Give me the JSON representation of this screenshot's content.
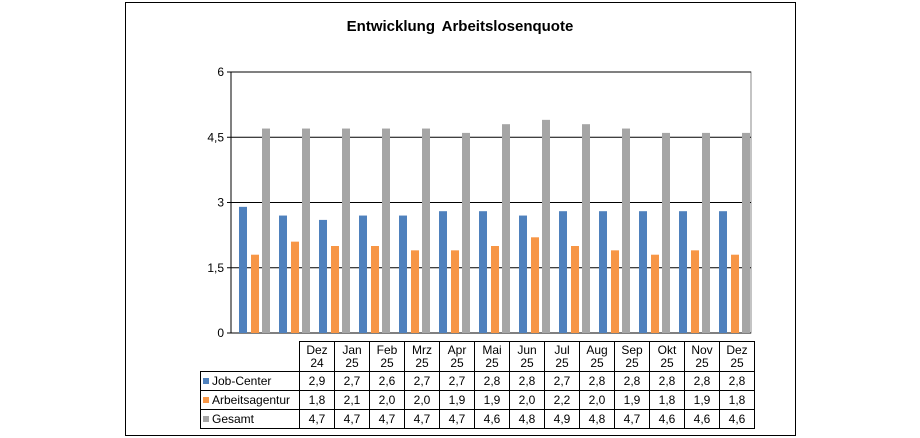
{
  "chart_data": {
    "type": "bar",
    "title": "Entwicklung  Arbeitslosenquote",
    "categories": [
      [
        "Dez",
        "24"
      ],
      [
        "Jan",
        "25"
      ],
      [
        "Feb",
        "25"
      ],
      [
        "Mrz",
        "25"
      ],
      [
        "Apr",
        "25"
      ],
      [
        "Mai",
        "25"
      ],
      [
        "Jun",
        "25"
      ],
      [
        "Jul",
        "25"
      ],
      [
        "Aug",
        "25"
      ],
      [
        "Sep",
        "25"
      ],
      [
        "Okt",
        "25"
      ],
      [
        "Nov",
        "25"
      ],
      [
        "Dez",
        "25"
      ]
    ],
    "ylim": [
      0,
      6
    ],
    "yticks": [
      "0",
      "1,5",
      "3",
      "4,5",
      "6"
    ],
    "grid": true,
    "legend": "data-table",
    "series": [
      {
        "name": "Job-Center",
        "color": "#4f81bd",
        "values": [
          2.9,
          2.7,
          2.6,
          2.7,
          2.7,
          2.8,
          2.8,
          2.7,
          2.8,
          2.8,
          2.8,
          2.8,
          2.8
        ],
        "labels": [
          "2,9",
          "2,7",
          "2,6",
          "2,7",
          "2,7",
          "2,8",
          "2,8",
          "2,7",
          "2,8",
          "2,8",
          "2,8",
          "2,8",
          "2,8"
        ]
      },
      {
        "name": "Arbeitsagentur",
        "color": "#f79646",
        "values": [
          1.8,
          2.1,
          2.0,
          2.0,
          1.9,
          1.9,
          2.0,
          2.2,
          2.0,
          1.9,
          1.8,
          1.9,
          1.8
        ],
        "labels": [
          "1,8",
          "2,1",
          "2,0",
          "2,0",
          "1,9",
          "1,9",
          "2,0",
          "2,2",
          "2,0",
          "1,9",
          "1,8",
          "1,9",
          "1,8"
        ]
      },
      {
        "name": "Gesamt",
        "color": "#a5a5a5",
        "values": [
          4.7,
          4.7,
          4.7,
          4.7,
          4.7,
          4.6,
          4.8,
          4.9,
          4.8,
          4.7,
          4.6,
          4.6,
          4.6
        ],
        "labels": [
          "4,7",
          "4,7",
          "4,7",
          "4,7",
          "4,7",
          "4,6",
          "4,8",
          "4,9",
          "4,8",
          "4,7",
          "4,6",
          "4,6",
          "4,6"
        ]
      }
    ]
  }
}
